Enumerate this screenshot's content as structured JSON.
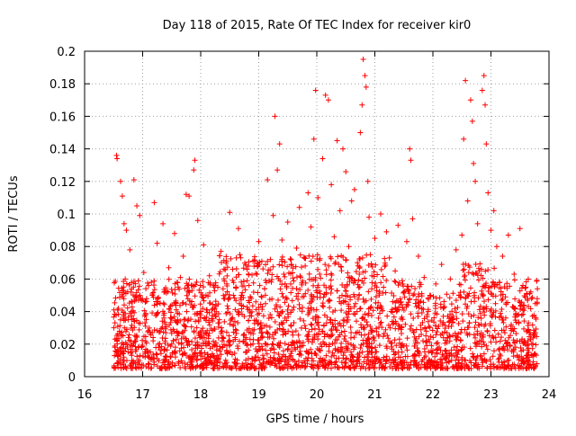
{
  "chart_data": {
    "type": "scatter",
    "title": "Day 118 of 2015, Rate Of TEC Index for receiver kir0",
    "xlabel": "GPS time / hours",
    "ylabel": "ROTI / TECUs",
    "xlim": [
      16,
      24
    ],
    "ylim": [
      0,
      0.2
    ],
    "x_ticks": [
      16,
      17,
      18,
      19,
      20,
      21,
      22,
      23,
      24
    ],
    "y_ticks": [
      0,
      0.02,
      0.04,
      0.06,
      0.08,
      0.1,
      0.12,
      0.14,
      0.16,
      0.18,
      0.2
    ],
    "x_tick_labels": [
      "16",
      "17",
      "18",
      "19",
      "20",
      "21",
      "22",
      "23",
      "24"
    ],
    "y_tick_labels": [
      "0",
      "0.02",
      "0.04",
      "0.06",
      "0.08",
      "0.1",
      "0.12",
      "0.14",
      "0.16",
      "0.18",
      "0.2"
    ],
    "grid": true,
    "marker": "plus",
    "marker_color": "#ff0000",
    "series": [
      {
        "points": [
          [
            16.55,
            0.136
          ],
          [
            16.56,
            0.134
          ],
          [
            16.62,
            0.12
          ],
          [
            16.65,
            0.111
          ],
          [
            16.68,
            0.094
          ],
          [
            16.72,
            0.09
          ],
          [
            16.78,
            0.078
          ],
          [
            16.85,
            0.121
          ],
          [
            16.9,
            0.105
          ],
          [
            16.95,
            0.099
          ],
          [
            16.58,
            0.042
          ],
          [
            16.6,
            0.028
          ],
          [
            16.63,
            0.015
          ],
          [
            16.7,
            0.06
          ],
          [
            16.75,
            0.035
          ],
          [
            16.8,
            0.052
          ],
          [
            16.88,
            0.022
          ],
          [
            16.93,
            0.047
          ],
          [
            16.98,
            0.018
          ],
          [
            17.02,
            0.064
          ],
          [
            17.05,
            0.031
          ],
          [
            17.1,
            0.012
          ],
          [
            17.15,
            0.058
          ],
          [
            17.2,
            0.107
          ],
          [
            17.25,
            0.082
          ],
          [
            17.3,
            0.045
          ],
          [
            17.35,
            0.094
          ],
          [
            17.4,
            0.027
          ],
          [
            17.45,
            0.067
          ],
          [
            17.5,
            0.02
          ],
          [
            17.55,
            0.088
          ],
          [
            17.6,
            0.039
          ],
          [
            17.65,
            0.061
          ],
          [
            17.7,
            0.074
          ],
          [
            17.75,
            0.112
          ],
          [
            17.8,
            0.111
          ],
          [
            17.85,
            0.053
          ],
          [
            17.88,
            0.127
          ],
          [
            17.9,
            0.133
          ],
          [
            17.95,
            0.096
          ],
          [
            18.0,
            0.025
          ],
          [
            18.05,
            0.081
          ],
          [
            18.1,
            0.041
          ],
          [
            18.15,
            0.062
          ],
          [
            18.2,
            0.014
          ],
          [
            18.25,
            0.056
          ],
          [
            18.3,
            0.033
          ],
          [
            18.35,
            0.077
          ],
          [
            18.4,
            0.048
          ],
          [
            18.45,
            0.019
          ],
          [
            18.5,
            0.101
          ],
          [
            18.55,
            0.066
          ],
          [
            18.6,
            0.029
          ],
          [
            18.65,
            0.091
          ],
          [
            18.7,
            0.044
          ],
          [
            18.75,
            0.037
          ],
          [
            18.8,
            0.059
          ],
          [
            18.85,
            0.023
          ],
          [
            18.9,
            0.071
          ],
          [
            18.95,
            0.046
          ],
          [
            19.0,
            0.083
          ],
          [
            19.05,
            0.03
          ],
          [
            19.1,
            0.054
          ],
          [
            19.15,
            0.121
          ],
          [
            19.2,
            0.072
          ],
          [
            19.25,
            0.099
          ],
          [
            19.28,
            0.16
          ],
          [
            19.32,
            0.127
          ],
          [
            19.36,
            0.143
          ],
          [
            19.4,
            0.084
          ],
          [
            19.45,
            0.036
          ],
          [
            19.5,
            0.095
          ],
          [
            19.55,
            0.057
          ],
          [
            19.6,
            0.021
          ],
          [
            19.65,
            0.079
          ],
          [
            19.7,
            0.104
          ],
          [
            19.75,
            0.049
          ],
          [
            19.8,
            0.068
          ],
          [
            19.85,
            0.113
          ],
          [
            19.9,
            0.092
          ],
          [
            19.95,
            0.146
          ],
          [
            19.98,
            0.176
          ],
          [
            20.02,
            0.11
          ],
          [
            20.05,
            0.063
          ],
          [
            20.1,
            0.134
          ],
          [
            20.15,
            0.173
          ],
          [
            20.2,
            0.17
          ],
          [
            20.25,
            0.118
          ],
          [
            20.3,
            0.086
          ],
          [
            20.35,
            0.145
          ],
          [
            20.4,
            0.102
          ],
          [
            20.45,
            0.14
          ],
          [
            20.5,
            0.126
          ],
          [
            20.55,
            0.08
          ],
          [
            20.6,
            0.108
          ],
          [
            20.65,
            0.115
          ],
          [
            20.7,
            0.07
          ],
          [
            20.75,
            0.15
          ],
          [
            20.78,
            0.167
          ],
          [
            20.8,
            0.195
          ],
          [
            20.83,
            0.185
          ],
          [
            20.85,
            0.178
          ],
          [
            20.88,
            0.12
          ],
          [
            20.9,
            0.098
          ],
          [
            20.95,
            0.062
          ],
          [
            21.0,
            0.085
          ],
          [
            21.05,
            0.042
          ],
          [
            21.1,
            0.1
          ],
          [
            21.15,
            0.055
          ],
          [
            21.2,
            0.089
          ],
          [
            21.25,
            0.073
          ],
          [
            21.3,
            0.034
          ],
          [
            21.35,
            0.065
          ],
          [
            21.4,
            0.093
          ],
          [
            21.45,
            0.018
          ],
          [
            21.5,
            0.052
          ],
          [
            21.55,
            0.083
          ],
          [
            21.6,
            0.14
          ],
          [
            21.62,
            0.133
          ],
          [
            21.65,
            0.097
          ],
          [
            21.7,
            0.045
          ],
          [
            21.75,
            0.074
          ],
          [
            21.8,
            0.026
          ],
          [
            21.85,
            0.061
          ],
          [
            21.9,
            0.038
          ],
          [
            21.95,
            0.05
          ],
          [
            22.0,
            0.016
          ],
          [
            22.05,
            0.057
          ],
          [
            22.1,
            0.031
          ],
          [
            22.15,
            0.069
          ],
          [
            22.2,
            0.043
          ],
          [
            22.25,
            0.024
          ],
          [
            22.3,
            0.06
          ],
          [
            22.35,
            0.035
          ],
          [
            22.4,
            0.078
          ],
          [
            22.45,
            0.05
          ],
          [
            22.5,
            0.087
          ],
          [
            22.53,
            0.146
          ],
          [
            22.56,
            0.182
          ],
          [
            22.6,
            0.108
          ],
          [
            22.65,
            0.17
          ],
          [
            22.68,
            0.157
          ],
          [
            22.7,
            0.131
          ],
          [
            22.73,
            0.12
          ],
          [
            22.77,
            0.094
          ],
          [
            22.8,
            0.065
          ],
          [
            22.85,
            0.176
          ],
          [
            22.88,
            0.185
          ],
          [
            22.9,
            0.167
          ],
          [
            22.92,
            0.143
          ],
          [
            22.95,
            0.113
          ],
          [
            23.0,
            0.09
          ],
          [
            23.05,
            0.102
          ],
          [
            23.1,
            0.08
          ],
          [
            23.15,
            0.058
          ],
          [
            23.2,
            0.074
          ],
          [
            23.25,
            0.049
          ],
          [
            23.3,
            0.087
          ],
          [
            23.35,
            0.032
          ],
          [
            23.4,
            0.063
          ],
          [
            23.45,
            0.022
          ],
          [
            23.5,
            0.091
          ],
          [
            23.55,
            0.041
          ],
          [
            23.6,
            0.055
          ],
          [
            23.65,
            0.015
          ],
          [
            23.7,
            0.048
          ],
          [
            23.75,
            0.027
          ],
          [
            23.8,
            0.054
          ]
        ]
      }
    ],
    "dense_region": {
      "x": [
        16.5,
        23.8
      ],
      "y_min": 0.005,
      "y_core_max": 0.06
    }
  }
}
